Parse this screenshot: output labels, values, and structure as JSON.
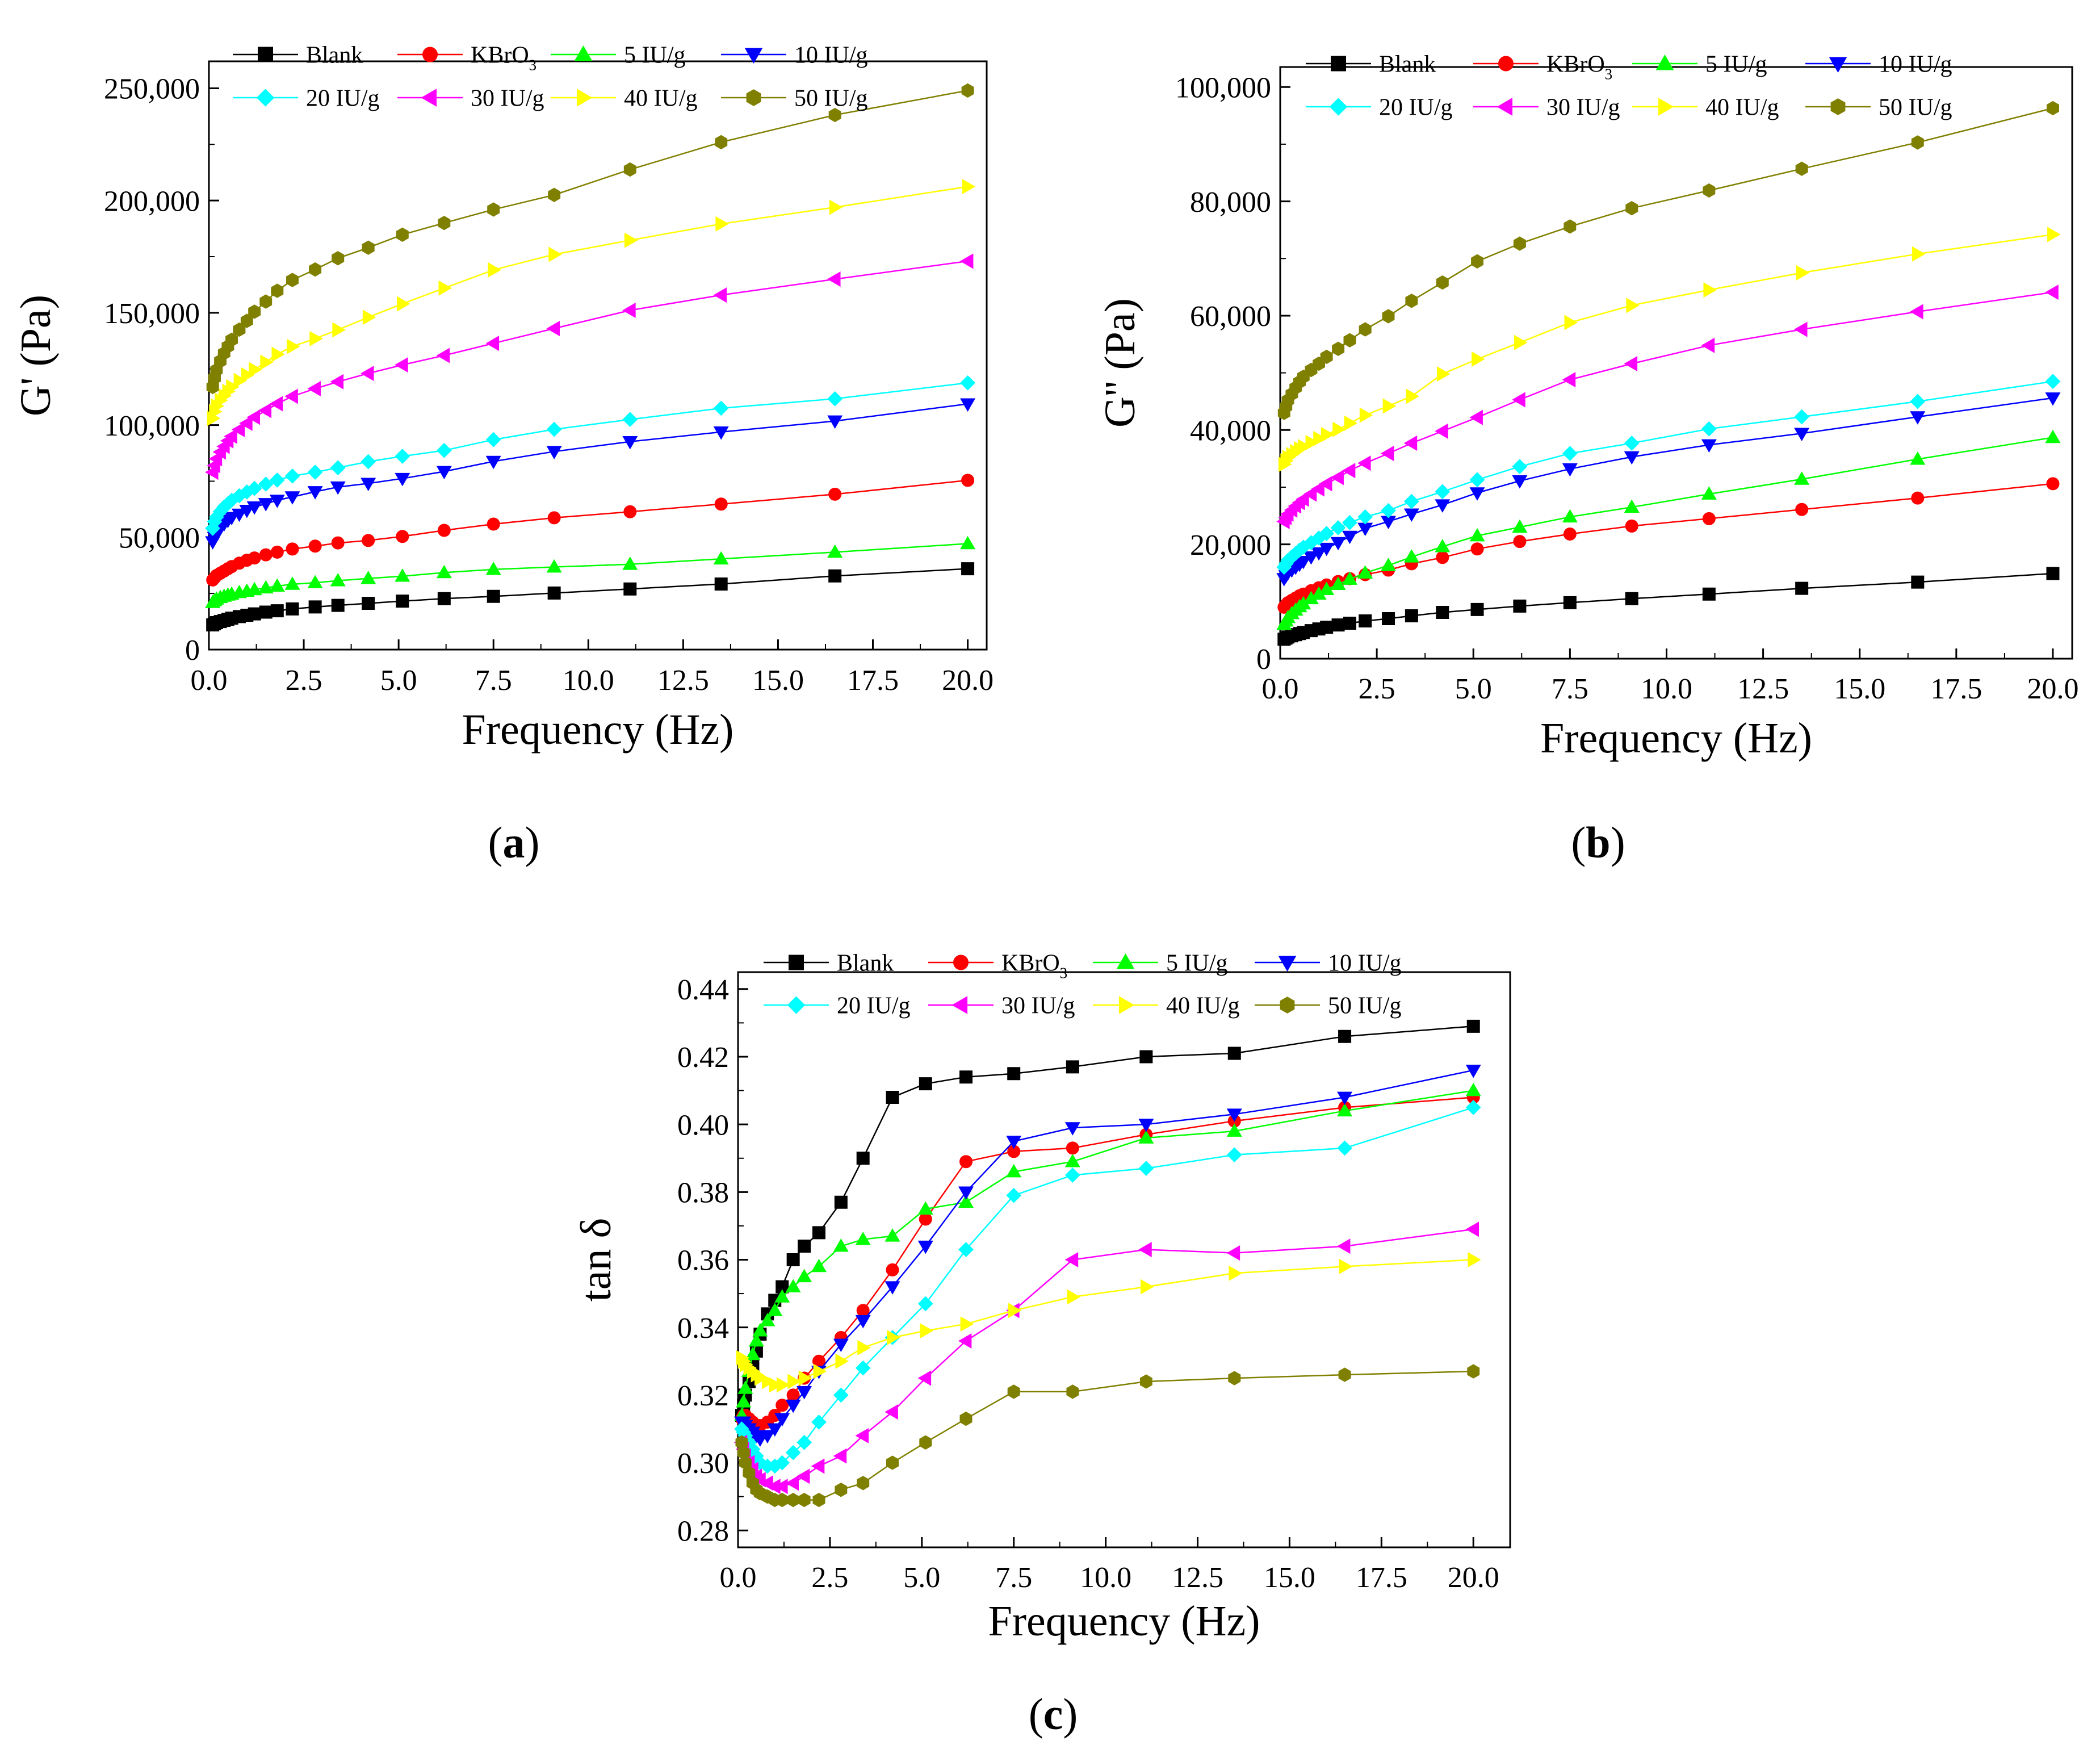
{
  "figure": {
    "panels": [
      {
        "id": "a",
        "caption_letter": "a"
      },
      {
        "id": "b",
        "caption_letter": "b"
      },
      {
        "id": "c",
        "caption_letter": "c"
      }
    ]
  },
  "legend_entries": [
    "Blank",
    "KBrO3",
    "5 IU/g",
    "10 IU/g",
    "20 IU/g",
    "30 IU/g",
    "40 IU/g",
    "50 IU/g"
  ],
  "series_style": [
    {
      "name": "Blank",
      "color": "#000000",
      "marker": "square"
    },
    {
      "name": "KBrO3",
      "color": "#ff0000",
      "marker": "circle"
    },
    {
      "name": "5 IU/g",
      "color": "#00ff00",
      "marker": "triangle-up"
    },
    {
      "name": "10 IU/g",
      "color": "#0000ff",
      "marker": "triangle-down"
    },
    {
      "name": "20 IU/g",
      "color": "#00ffff",
      "marker": "diamond"
    },
    {
      "name": "30 IU/g",
      "color": "#ff00ff",
      "marker": "triangle-left"
    },
    {
      "name": "40 IU/g",
      "color": "#ffff00",
      "marker": "triangle-right"
    },
    {
      "name": "50 IU/g",
      "color": "#808000",
      "marker": "hexagon"
    }
  ],
  "chart_data": [
    {
      "panel": "a",
      "type": "line",
      "title": "",
      "xlabel": "Frequency (Hz)",
      "ylabel": "G' (Pa)",
      "xlim": [
        0,
        20.5
      ],
      "ylim": [
        0,
        262000
      ],
      "xticks": [
        0,
        2.5,
        5,
        7.5,
        10,
        12.5,
        15,
        17.5,
        20
      ],
      "xtick_labels": [
        "0.0",
        "2.5",
        "5.0",
        "7.5",
        "10.0",
        "12.5",
        "15.0",
        "17.5",
        "20.0"
      ],
      "yticks": [
        0,
        50000,
        100000,
        150000,
        200000,
        250000
      ],
      "ytick_labels": [
        "0",
        "50,000",
        "100,000",
        "150,000",
        "200,000",
        "250,000"
      ],
      "x": [
        0.1,
        0.15,
        0.2,
        0.3,
        0.4,
        0.5,
        0.6,
        0.8,
        1.0,
        1.2,
        1.5,
        1.8,
        2.2,
        2.8,
        3.4,
        4.2,
        5.1,
        6.2,
        7.5,
        9.1,
        11.1,
        13.5,
        16.5,
        20.0
      ],
      "series": [
        {
          "name": "Blank",
          "values": [
            11000,
            11500,
            12000,
            12500,
            13000,
            13500,
            14000,
            14700,
            15300,
            15900,
            16700,
            17300,
            18100,
            19000,
            19700,
            20600,
            21600,
            22700,
            23700,
            25200,
            27000,
            29200,
            32800,
            36000
          ]
        },
        {
          "name": "KBrO3",
          "values": [
            31000,
            32000,
            33000,
            34000,
            35000,
            36000,
            37000,
            38500,
            39800,
            40800,
            42200,
            43400,
            44800,
            46100,
            47500,
            48600,
            50400,
            53100,
            55900,
            58700,
            61400,
            64800,
            69200,
            75400
          ]
        },
        {
          "name": "5 IU/g",
          "values": [
            21000,
            21800,
            22500,
            23200,
            23800,
            24300,
            24700,
            25400,
            26000,
            26700,
            27500,
            28300,
            29100,
            29800,
            30700,
            31700,
            32700,
            34300,
            35700,
            36800,
            38000,
            40400,
            43400,
            47200
          ]
        },
        {
          "name": "10 IU/g",
          "values": [
            48000,
            50000,
            52000,
            54000,
            56000,
            57500,
            58800,
            60300,
            62000,
            63500,
            65000,
            66500,
            68000,
            70300,
            72400,
            74000,
            76200,
            79300,
            83800,
            88200,
            92600,
            96900,
            101800,
            109400
          ]
        },
        {
          "name": "20 IU/g",
          "values": [
            54000,
            57000,
            59000,
            61500,
            63500,
            65000,
            66500,
            68500,
            70200,
            71800,
            73700,
            75500,
            77300,
            79000,
            81000,
            83700,
            86100,
            88700,
            93500,
            98100,
            102500,
            107500,
            111700,
            118800
          ]
        },
        {
          "name": "30 IU/g",
          "values": [
            79000,
            82000,
            85000,
            88000,
            90500,
            93000,
            95000,
            98000,
            100800,
            103500,
            106500,
            109500,
            112800,
            116200,
            119300,
            123000,
            126800,
            131000,
            136400,
            143000,
            151100,
            157900,
            165000,
            173000
          ]
        },
        {
          "name": "40 IU/g",
          "values": [
            103000,
            106000,
            108500,
            111000,
            113000,
            115000,
            117000,
            119800,
            122300,
            124700,
            128000,
            131500,
            135000,
            138500,
            142400,
            148000,
            154000,
            161000,
            169100,
            176000,
            182300,
            189600,
            197000,
            206200
          ]
        },
        {
          "name": "50 IU/g",
          "values": [
            117000,
            121000,
            124500,
            128500,
            132000,
            135000,
            138000,
            142500,
            146400,
            150500,
            155000,
            159800,
            164600,
            169300,
            174300,
            179000,
            184800,
            190000,
            196000,
            202500,
            213800,
            226000,
            238100,
            249000
          ]
        }
      ]
    },
    {
      "panel": "b",
      "type": "line",
      "title": "",
      "xlabel": "Frequency (Hz)",
      "ylabel": "G'' (Pa)",
      "xlim": [
        0,
        20.5
      ],
      "ylim": [
        0,
        103500
      ],
      "xticks": [
        0,
        2.5,
        5,
        7.5,
        10,
        12.5,
        15,
        17.5,
        20
      ],
      "xtick_labels": [
        "0.0",
        "2.5",
        "5.0",
        "7.5",
        "10.0",
        "12.5",
        "15.0",
        "17.5",
        "20.0"
      ],
      "yticks": [
        0,
        20000,
        40000,
        60000,
        80000,
        100000
      ],
      "ytick_labels": [
        "0",
        "20,000",
        "40,000",
        "60,000",
        "80,000",
        "100,000"
      ],
      "x": [
        0.1,
        0.15,
        0.2,
        0.3,
        0.4,
        0.5,
        0.6,
        0.8,
        1.0,
        1.2,
        1.5,
        1.8,
        2.2,
        2.8,
        3.4,
        4.2,
        5.1,
        6.2,
        7.5,
        9.1,
        11.1,
        13.5,
        16.5,
        20.0
      ],
      "series": [
        {
          "name": "Blank",
          "values": [
            3400,
            3600,
            3800,
            4000,
            4200,
            4400,
            4600,
            4900,
            5200,
            5500,
            5900,
            6200,
            6600,
            7000,
            7500,
            8100,
            8600,
            9200,
            9800,
            10500,
            11300,
            12300,
            13400,
            14900
          ]
        },
        {
          "name": "KBrO3",
          "values": [
            9000,
            9400,
            9800,
            10200,
            10600,
            11000,
            11300,
            11900,
            12400,
            12900,
            13500,
            14000,
            14700,
            15500,
            16600,
            17700,
            19200,
            20500,
            21800,
            23200,
            24500,
            26100,
            28100,
            30600
          ]
        },
        {
          "name": "5 IU/g",
          "values": [
            6000,
            6600,
            7200,
            7900,
            8500,
            9100,
            9600,
            10500,
            11300,
            12100,
            13000,
            13900,
            15000,
            16300,
            17800,
            19600,
            21500,
            23000,
            24800,
            26500,
            28800,
            31400,
            34900,
            38700
          ]
        },
        {
          "name": "10 IU/g",
          "values": [
            14000,
            14500,
            15000,
            15500,
            16000,
            16500,
            17000,
            17800,
            18500,
            19300,
            20300,
            21400,
            22800,
            24000,
            25300,
            26900,
            29000,
            31100,
            33200,
            35300,
            37400,
            39400,
            42300,
            45600
          ]
        },
        {
          "name": "20 IU/g",
          "values": [
            16000,
            16600,
            17200,
            17800,
            18400,
            19000,
            19500,
            20300,
            21100,
            21900,
            22900,
            23800,
            24800,
            25900,
            27500,
            29200,
            31300,
            33600,
            35900,
            37700,
            40200,
            42300,
            45000,
            48500
          ]
        },
        {
          "name": "30 IU/g",
          "values": [
            24000,
            24700,
            25300,
            26000,
            26700,
            27300,
            27900,
            28800,
            29700,
            30600,
            31700,
            32900,
            34200,
            35900,
            37700,
            39800,
            42200,
            45300,
            48800,
            51600,
            54800,
            57600,
            60700,
            64100
          ]
        },
        {
          "name": "40 IU/g",
          "values": [
            34000,
            34600,
            35200,
            35700,
            36200,
            36700,
            37100,
            37800,
            38500,
            39200,
            40100,
            41200,
            42600,
            44200,
            45900,
            49800,
            52400,
            55300,
            58800,
            61800,
            64500,
            67500,
            70800,
            74200
          ]
        },
        {
          "name": "50 IU/g",
          "values": [
            43000,
            44100,
            45200,
            46300,
            47400,
            48400,
            49300,
            50500,
            51600,
            52800,
            54200,
            55700,
            57600,
            59900,
            62600,
            65800,
            69500,
            72600,
            75600,
            78800,
            81900,
            85700,
            90300,
            96300
          ]
        }
      ]
    },
    {
      "panel": "c",
      "type": "line",
      "title": "",
      "xlabel": "Frequency (Hz)",
      "ylabel": "tan δ",
      "xlim": [
        0,
        21
      ],
      "ylim": [
        0.275,
        0.445
      ],
      "xticks": [
        0,
        2.5,
        5,
        7.5,
        10,
        12.5,
        15,
        17.5,
        20
      ],
      "xtick_labels": [
        "0.0",
        "2.5",
        "5.0",
        "7.5",
        "10.0",
        "12.5",
        "15.0",
        "17.5",
        "20.0"
      ],
      "yticks": [
        0.28,
        0.3,
        0.32,
        0.34,
        0.36,
        0.38,
        0.4,
        0.42,
        0.44
      ],
      "ytick_labels": [
        "0.28",
        "0.30",
        "0.32",
        "0.34",
        "0.36",
        "0.38",
        "0.40",
        "0.42",
        "0.44"
      ],
      "x": [
        0.1,
        0.15,
        0.2,
        0.3,
        0.4,
        0.5,
        0.6,
        0.8,
        1.0,
        1.2,
        1.5,
        1.8,
        2.2,
        2.8,
        3.4,
        4.2,
        5.1,
        6.2,
        7.5,
        9.1,
        11.1,
        13.5,
        16.5,
        20.0
      ],
      "series": [
        {
          "name": "Blank",
          "values": [
            0.314,
            0.317,
            0.32,
            0.324,
            0.329,
            0.333,
            0.338,
            0.344,
            0.348,
            0.352,
            0.36,
            0.364,
            0.368,
            0.377,
            0.39,
            0.408,
            0.412,
            0.414,
            0.415,
            0.417,
            0.42,
            0.421,
            0.426,
            0.429
          ]
        },
        {
          "name": "KBrO3",
          "values": [
            0.313,
            0.314,
            0.314,
            0.313,
            0.312,
            0.311,
            0.311,
            0.312,
            0.314,
            0.317,
            0.32,
            0.325,
            0.33,
            0.337,
            0.345,
            0.357,
            0.372,
            0.389,
            0.392,
            0.393,
            0.397,
            0.401,
            0.405,
            0.408
          ]
        },
        {
          "name": "5 IU/g",
          "values": [
            0.314,
            0.318,
            0.322,
            0.327,
            0.332,
            0.336,
            0.339,
            0.342,
            0.345,
            0.349,
            0.352,
            0.355,
            0.358,
            0.364,
            0.366,
            0.367,
            0.375,
            0.377,
            0.386,
            0.389,
            0.396,
            0.398,
            0.404,
            0.41
          ]
        },
        {
          "name": "10 IU/g",
          "values": [
            0.312,
            0.312,
            0.311,
            0.31,
            0.309,
            0.308,
            0.307,
            0.308,
            0.31,
            0.313,
            0.317,
            0.321,
            0.327,
            0.335,
            0.342,
            0.352,
            0.364,
            0.38,
            0.395,
            0.399,
            0.4,
            0.403,
            0.408,
            0.416
          ]
        },
        {
          "name": "20 IU/g",
          "values": [
            0.31,
            0.309,
            0.308,
            0.306,
            0.304,
            0.302,
            0.3,
            0.299,
            0.299,
            0.3,
            0.303,
            0.306,
            0.312,
            0.32,
            0.328,
            0.337,
            0.347,
            0.363,
            0.379,
            0.385,
            0.387,
            0.391,
            0.393,
            0.405
          ]
        },
        {
          "name": "30 IU/g",
          "values": [
            0.306,
            0.304,
            0.302,
            0.3,
            0.298,
            0.296,
            0.295,
            0.294,
            0.293,
            0.293,
            0.294,
            0.296,
            0.299,
            0.302,
            0.308,
            0.315,
            0.325,
            0.336,
            0.345,
            0.36,
            0.363,
            0.362,
            0.364,
            0.369
          ]
        },
        {
          "name": "40 IU/g",
          "values": [
            0.331,
            0.33,
            0.329,
            0.328,
            0.327,
            0.326,
            0.325,
            0.324,
            0.323,
            0.323,
            0.324,
            0.325,
            0.327,
            0.33,
            0.334,
            0.337,
            0.339,
            0.341,
            0.345,
            0.349,
            0.352,
            0.356,
            0.358,
            0.36
          ]
        },
        {
          "name": "50 IU/g",
          "values": [
            0.306,
            0.303,
            0.3,
            0.297,
            0.294,
            0.292,
            0.291,
            0.29,
            0.289,
            0.289,
            0.289,
            0.289,
            0.289,
            0.292,
            0.294,
            0.3,
            0.306,
            0.313,
            0.321,
            0.321,
            0.324,
            0.325,
            0.326,
            0.327
          ]
        }
      ]
    }
  ]
}
